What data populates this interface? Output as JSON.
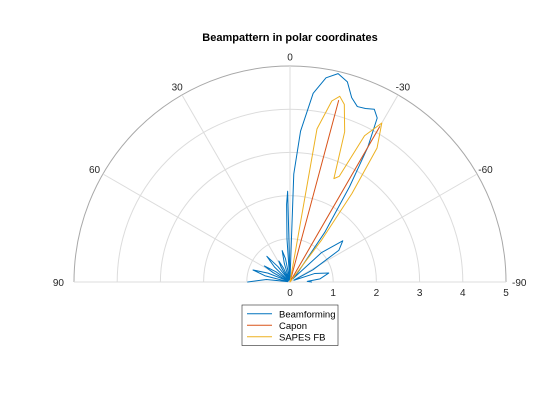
{
  "chart_data": {
    "type": "line",
    "coordinate_system": "polar",
    "title": "Beampattern in polar coordinates",
    "theta_zero_location": "top",
    "theta_direction": "clockwise-negative",
    "theta_range_deg": [
      -90,
      90
    ],
    "theta_ticks": [
      {
        "deg": 0,
        "label": "0"
      },
      {
        "deg": 30,
        "label": "30"
      },
      {
        "deg": -30,
        "label": "-30"
      },
      {
        "deg": 60,
        "label": "60"
      },
      {
        "deg": -60,
        "label": "-60"
      },
      {
        "deg": 90,
        "label": "90"
      },
      {
        "deg": -90,
        "label": "-90"
      }
    ],
    "r_range": [
      0,
      5
    ],
    "r_ticks": [
      "0",
      "1",
      "2",
      "3",
      "4",
      "5"
    ],
    "grid": true,
    "legend_location": "bottom-center",
    "series": [
      {
        "name": "Beamforming",
        "color": "#0072BD",
        "points": [
          [
            90,
            0.98
          ],
          [
            84,
            0.55
          ],
          [
            80,
            0.05
          ],
          [
            76,
            0.6
          ],
          [
            72,
            0.9
          ],
          [
            68,
            0.55
          ],
          [
            65,
            0.05
          ],
          [
            61,
            0.45
          ],
          [
            58,
            0.7
          ],
          [
            54,
            0.4
          ],
          [
            50,
            0.05
          ],
          [
            46,
            0.5
          ],
          [
            42,
            0.8
          ],
          [
            38,
            0.45
          ],
          [
            35,
            0.05
          ],
          [
            31,
            0.4
          ],
          [
            28,
            0.55
          ],
          [
            25,
            0.35
          ],
          [
            22,
            0.05
          ],
          [
            17,
            0.45
          ],
          [
            14,
            0.75
          ],
          [
            11,
            0.55
          ],
          [
            7,
            0.05
          ],
          [
            4,
            1.0
          ],
          [
            2.5,
            1.8
          ],
          [
            1.5,
            2.1
          ],
          [
            0,
            0.05
          ],
          [
            -2,
            2.5
          ],
          [
            -4,
            3.5
          ],
          [
            -7,
            4.4
          ],
          [
            -10,
            4.8
          ],
          [
            -13,
            4.95
          ],
          [
            -16,
            4.82
          ],
          [
            -18.5,
            4.5
          ],
          [
            -21,
            4.35
          ],
          [
            -23.5,
            4.38
          ],
          [
            -26,
            4.45
          ],
          [
            -28,
            4.3
          ],
          [
            -30,
            3.6
          ],
          [
            -32,
            2.6
          ],
          [
            -35,
            1.4
          ],
          [
            -39,
            0.3
          ],
          [
            -42,
            0.1
          ],
          [
            -47,
            1.0
          ],
          [
            -52,
            1.55
          ],
          [
            -57,
            1.35
          ],
          [
            -62,
            0.6
          ],
          [
            -66,
            0.1
          ],
          [
            -71,
            0.6
          ],
          [
            -77,
            0.92
          ],
          [
            -84,
            0.7
          ],
          [
            -88,
            0.4
          ],
          [
            -90,
            0.5
          ]
        ]
      },
      {
        "name": "Capon",
        "color": "#D95319",
        "points": [
          [
            0,
            0.0
          ],
          [
            -15,
            4.35
          ],
          [
            0,
            0.0
          ],
          [
            -30,
            4.15
          ],
          [
            0,
            0.0
          ]
        ]
      },
      {
        "name": "SAPES FB",
        "color": "#EDB120",
        "points": [
          [
            0,
            0.0
          ],
          [
            -10,
            3.6
          ],
          [
            -13,
            4.3
          ],
          [
            -15,
            4.45
          ],
          [
            -17,
            4.3
          ],
          [
            -20,
            3.7
          ],
          [
            -23,
            2.6
          ],
          [
            -25,
            2.7
          ],
          [
            -27,
            3.8
          ],
          [
            -30,
            4.25
          ],
          [
            -33,
            3.7
          ],
          [
            -35,
            2.5
          ],
          [
            -37,
            1.2
          ],
          [
            0,
            0.0
          ]
        ]
      }
    ]
  }
}
